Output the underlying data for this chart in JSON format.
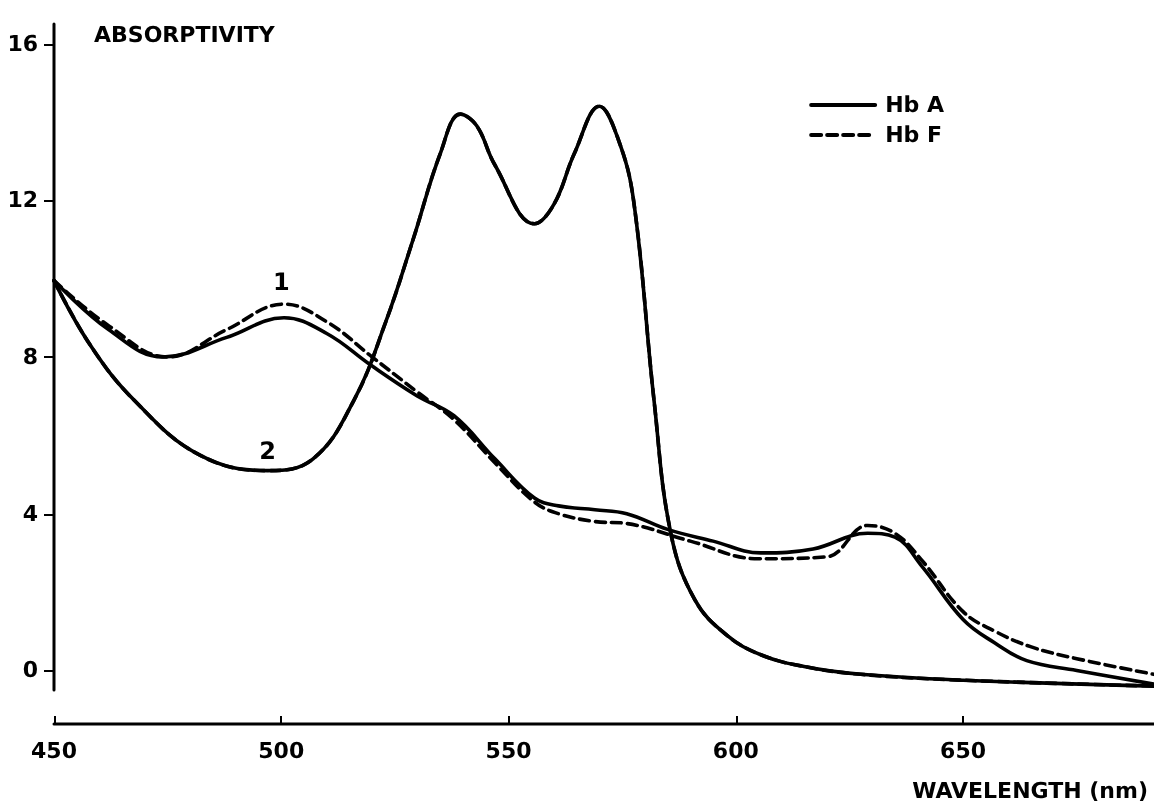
{
  "chart_data": {
    "type": "line",
    "ylabel": "ABSORPTIVITY",
    "xlabel": "WAVELENGTH (nm)",
    "xlim": [
      450,
      692
    ],
    "xticks": [
      450,
      500,
      550,
      600,
      650
    ],
    "ylim": [
      -0.5,
      16.5
    ],
    "yticks": [
      0,
      4,
      8,
      12,
      16
    ],
    "grid": false,
    "legend": "top right",
    "marker": "none",
    "annotations": [
      {
        "text": "1",
        "x": 500,
        "y": 9.4
      },
      {
        "text": "2",
        "x": 497,
        "y": 5.1
      }
    ],
    "series": [
      {
        "name": "Hb A",
        "color": "#000000",
        "line_style": "solid",
        "x": [
          450,
          462,
          474,
          488,
          500.6,
          510,
          519.6,
          530,
          538,
          547,
          555.7,
          561,
          569,
          576,
          585,
          595,
          605.5,
          617,
          629,
          635,
          641,
          650,
          657,
          664,
          675,
          692
        ],
        "values": [
          9.95,
          8.7,
          8.0,
          8.5,
          9.0,
          8.6,
          7.8,
          7.0,
          6.5,
          5.4,
          4.4,
          4.2,
          4.1,
          4.0,
          3.6,
          3.3,
          3.0,
          3.1,
          3.5,
          3.4,
          2.65,
          1.3,
          0.7,
          0.25,
          0.0,
          -0.35
        ]
      },
      {
        "name": "Hb F",
        "color": "#000000",
        "line_style": "dashed",
        "x": [
          450,
          462,
          475,
          488,
          500.6,
          510,
          520,
          530,
          538,
          547,
          555.7,
          561,
          569,
          576,
          590,
          605,
          620,
          629,
          635,
          641,
          650,
          657,
          665,
          675,
          692
        ],
        "values": [
          9.95,
          8.8,
          8.0,
          8.7,
          9.35,
          8.9,
          8.0,
          7.1,
          6.4,
          5.3,
          4.3,
          4.0,
          3.8,
          3.75,
          3.3,
          2.85,
          2.9,
          3.7,
          3.5,
          2.8,
          1.5,
          1.0,
          0.6,
          0.3,
          -0.1
        ]
      },
      {
        "color": "#000000",
        "line_style": "solid",
        "x": [
          450,
          458,
          467.6,
          482,
          497,
          507,
          516,
          523,
          529,
          535,
          539.4,
          543,
          547,
          555.7,
          560,
          564.5,
          570,
          574,
          577.5,
          582,
          585.7,
          591,
          598,
          605.5,
          615,
          627.5,
          650,
          692
        ],
        "values": [
          9.95,
          8.3,
          6.9,
          5.5,
          5.1,
          5.4,
          6.9,
          8.9,
          11.0,
          13.2,
          14.2,
          13.9,
          12.9,
          11.4,
          11.9,
          13.2,
          14.4,
          13.6,
          12.0,
          6.9,
          3.5,
          1.8,
          0.9,
          0.4,
          0.1,
          -0.1,
          -0.25,
          -0.4
        ]
      },
      {
        "color": "#000000",
        "line_style": "dashed",
        "x": [
          450,
          458,
          467.6,
          482,
          497,
          507,
          516,
          523,
          529,
          535,
          539.4,
          543,
          547,
          555.7,
          560,
          564.5,
          570,
          574,
          577.5,
          582,
          585.7,
          591,
          598,
          605.5,
          615,
          627.5,
          650,
          692
        ],
        "values": [
          9.95,
          8.3,
          6.9,
          5.5,
          5.1,
          5.4,
          6.9,
          8.9,
          11.0,
          13.2,
          14.2,
          13.9,
          12.9,
          11.4,
          11.9,
          13.2,
          14.4,
          13.6,
          12.0,
          6.9,
          3.5,
          1.8,
          0.9,
          0.4,
          0.1,
          -0.1,
          -0.25,
          -0.4
        ]
      }
    ]
  }
}
